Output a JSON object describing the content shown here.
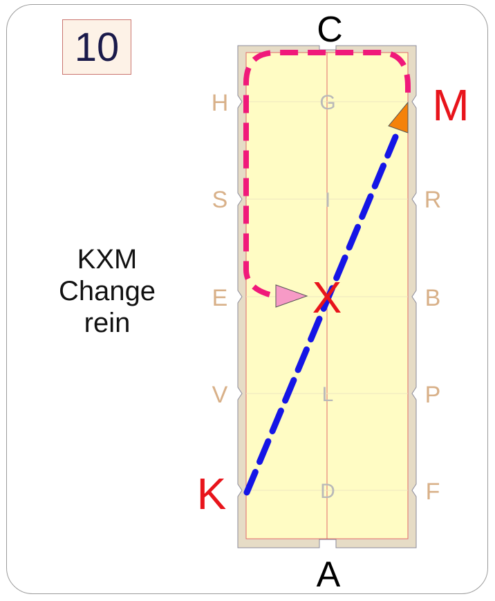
{
  "test_number": "10",
  "caption": {
    "line1": "KXM",
    "line2": "Change",
    "line3": "rein"
  },
  "arena_letters": {
    "top": "C",
    "bottom": "A",
    "left": [
      "H",
      "S",
      "E",
      "V"
    ],
    "right": [
      "R",
      "B",
      "P",
      "F"
    ],
    "center": [
      "G",
      "I",
      "L",
      "D"
    ]
  },
  "highlighted_letters": {
    "start": "K",
    "middle": "X",
    "end": "M"
  },
  "colors": {
    "arena_fill": "#fffcc4",
    "arena_border": "#e6dcc6",
    "track_pink": "#f0197a",
    "track_blue": "#1515e6",
    "arrow_pink": "#f79ac6",
    "arrow_orange": "#f5820a",
    "letter_red": "#e8141b"
  }
}
